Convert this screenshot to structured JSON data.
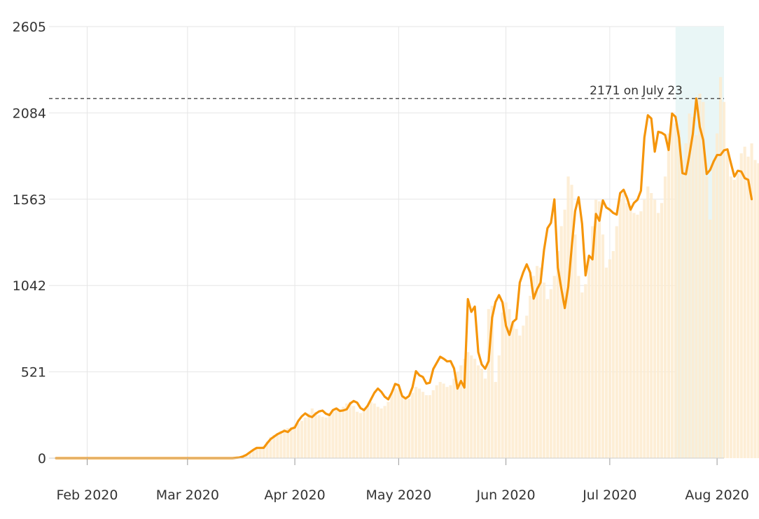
{
  "chart_data": {
    "type": "line",
    "title": "",
    "xlabel": "",
    "ylabel": "",
    "ylim": [
      0,
      2605
    ],
    "y_ticks": [
      "0",
      "521",
      "1042",
      "1563",
      "2084",
      "2605"
    ],
    "x_ticks": [
      {
        "label": "Feb 2020",
        "date": "2020-02-01"
      },
      {
        "label": "Mar 2020",
        "date": "2020-03-01"
      },
      {
        "label": "Apr 2020",
        "date": "2020-04-01"
      },
      {
        "label": "May 2020",
        "date": "2020-05-01"
      },
      {
        "label": "Jun 2020",
        "date": "2020-06-01"
      },
      {
        "label": "Jul 2020",
        "date": "2020-07-01"
      },
      {
        "label": "Aug 2020",
        "date": "2020-08-01"
      }
    ],
    "x_range": [
      "2020-01-23",
      "2020-08-03"
    ],
    "grid": true,
    "highlight_range": [
      "2020-07-20",
      "2020-08-03"
    ],
    "annotation": {
      "text": "2171 on July 23",
      "value": 2171
    },
    "colors": {
      "line": "#f5950b",
      "bars": "#fdebcf",
      "highlight": "#e9f6f6",
      "grid": "#e6e6e6",
      "reference_line": "#444444"
    },
    "series": [
      {
        "kind": "bar",
        "start_date": "2020-01-23",
        "values": [
          0,
          0,
          0,
          0,
          0,
          0,
          0,
          0,
          0,
          0,
          0,
          0,
          0,
          0,
          0,
          0,
          0,
          0,
          0,
          0,
          0,
          0,
          0,
          0,
          0,
          0,
          0,
          0,
          0,
          0,
          0,
          0,
          0,
          0,
          0,
          0,
          0,
          0,
          0,
          0,
          0,
          0,
          0,
          0,
          0,
          0,
          0,
          0,
          0,
          0,
          0,
          0,
          0,
          0,
          10,
          20,
          35,
          50,
          62,
          68,
          74,
          100,
          128,
          140,
          150,
          165,
          176,
          182,
          188,
          200,
          210,
          225,
          245,
          270,
          300,
          280,
          260,
          250,
          245,
          270,
          285,
          300,
          295,
          310,
          330,
          340,
          315,
          280,
          272,
          290,
          320,
          340,
          330,
          310,
          300,
          315,
          340,
          390,
          420,
          410,
          370,
          355,
          360,
          395,
          430,
          420,
          400,
          380,
          380,
          410,
          440,
          460,
          450,
          430,
          440,
          480,
          520,
          560,
          600,
          640,
          620,
          600,
          560,
          540,
          480,
          900,
          920,
          460,
          620,
          880,
          940,
          900,
          820,
          780,
          740,
          800,
          860,
          980,
          1100,
          1160,
          1150,
          1060,
          960,
          1020,
          1100,
          1250,
          1400,
          1500,
          1700,
          1650,
          1350,
          1100,
          1000,
          1050,
          1200,
          1400,
          1560,
          1550,
          1350,
          1150,
          1200,
          1250,
          1400,
          1560,
          1600,
          1540,
          1500,
          1480,
          1470,
          1490,
          1560,
          1640,
          1600,
          1560,
          1480,
          1540,
          1700,
          1960,
          2050,
          2020,
          1980,
          1800,
          1900,
          2080,
          2060,
          1950,
          2200,
          2150,
          1700,
          1440,
          1800,
          1960,
          2300,
          2150,
          1850,
          1700,
          1680,
          1720,
          1840,
          1880,
          1820,
          1900,
          1800,
          1780,
          1600,
          1080
        ]
      },
      {
        "kind": "line",
        "start_date": "2020-01-23",
        "values": [
          0,
          0,
          0,
          0,
          0,
          0,
          0,
          0,
          0,
          0,
          0,
          0,
          0,
          0,
          0,
          0,
          0,
          0,
          0,
          0,
          0,
          0,
          0,
          0,
          0,
          0,
          0,
          0,
          0,
          0,
          0,
          0,
          0,
          0,
          0,
          0,
          0,
          0,
          0,
          0,
          0,
          0,
          0,
          0,
          0,
          0,
          0,
          0,
          0,
          0,
          0,
          0,
          2,
          4,
          10,
          20,
          35,
          50,
          62,
          62,
          62,
          90,
          115,
          130,
          145,
          155,
          165,
          158,
          178,
          185,
          225,
          252,
          270,
          255,
          248,
          268,
          282,
          287,
          268,
          260,
          290,
          300,
          285,
          288,
          295,
          330,
          345,
          335,
          302,
          290,
          315,
          355,
          395,
          420,
          400,
          370,
          355,
          395,
          448,
          440,
          375,
          360,
          375,
          428,
          525,
          500,
          490,
          450,
          455,
          538,
          575,
          612,
          600,
          584,
          586,
          542,
          420,
          466,
          426,
          960,
          883,
          915,
          640,
          566,
          540,
          586,
          848,
          943,
          984,
          940,
          800,
          744,
          822,
          840,
          1060,
          1122,
          1170,
          1120,
          963,
          1020,
          1060,
          1256,
          1388,
          1420,
          1562,
          1150,
          1023,
          906,
          1035,
          1274,
          1492,
          1575,
          1414,
          1103,
          1222,
          1200,
          1474,
          1433,
          1556,
          1513,
          1500,
          1480,
          1470,
          1600,
          1620,
          1570,
          1500,
          1541,
          1560,
          1614,
          1936,
          2070,
          2050,
          1850,
          1970,
          1964,
          1950,
          1860,
          2080,
          2060,
          1934,
          1720,
          1714,
          1830,
          1958,
          2171,
          2000,
          1920,
          1715,
          1740,
          1790,
          1830,
          1830,
          1858,
          1864,
          1780,
          1700,
          1735,
          1730,
          1690,
          1680,
          1563
        ]
      }
    ]
  }
}
